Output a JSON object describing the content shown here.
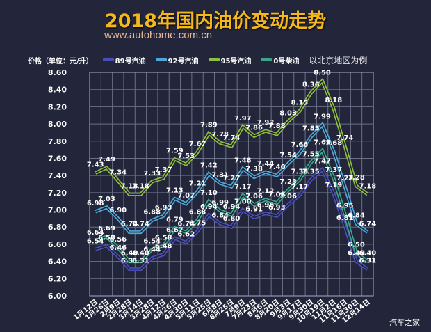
{
  "header": {
    "title": "2018年国内油价变动走势",
    "subtitle": "www.autohome.com.cn"
  },
  "legend": {
    "unit_label": "价格（单位：元/升）",
    "note": "以北京地区为例"
  },
  "watermark": "汽车之家",
  "chart_data": {
    "type": "line",
    "title": "2018年国内油价变动走势",
    "subtitle": "www.autohome.com.cn",
    "ylabel": "价格（单位：元/升）",
    "xlabel": "",
    "note": "以北京地区为例",
    "ylim": [
      6.0,
      8.6
    ],
    "yticks": [
      "6.00",
      "6.20",
      "6.40",
      "6.60",
      "6.80",
      "7.00",
      "7.20",
      "7.40",
      "7.60",
      "7.80",
      "8.00",
      "8.20",
      "8.40",
      "8.60"
    ],
    "grid": true,
    "legend_position": "top",
    "categories": [
      "1月12日",
      "1月26日",
      "2月9日",
      "2月28日",
      "3月14日",
      "3月28日",
      "4月12日",
      "4月26日",
      "4月30日",
      "5月11日",
      "5月25日",
      "6月8日",
      "6月25日",
      "7月9日",
      "7月23日",
      "8月6日",
      "8月20日",
      "9月3日",
      "9月17日",
      "9月30日",
      "10月19日",
      "11月2日",
      "11月16日",
      "11月30日",
      "12月14日"
    ],
    "series": [
      {
        "name": "89号汽油",
        "color": "#4a4fb8",
        "values": [
          6.54,
          6.58,
          6.46,
          6.31,
          6.31,
          6.44,
          6.48,
          6.67,
          6.62,
          6.75,
          6.94,
          6.84,
          6.8,
          7.0,
          6.91,
          6.96,
          6.93,
          7.06,
          7.17,
          7.35,
          7.47,
          7.19,
          6.81,
          6.4,
          6.31
        ]
      },
      {
        "name": "92号汽油",
        "color": "#4fa8d8",
        "values": [
          6.98,
          7.03,
          6.9,
          6.74,
          6.74,
          6.88,
          6.93,
          7.13,
          7.07,
          7.21,
          7.42,
          7.31,
          7.27,
          7.48,
          7.38,
          7.44,
          7.4,
          7.54,
          7.66,
          7.85,
          7.99,
          7.68,
          7.27,
          6.84,
          6.74
        ]
      },
      {
        "name": "95号汽油",
        "color": "#8fbf3f",
        "values": [
          7.43,
          7.49,
          7.34,
          7.18,
          7.18,
          7.33,
          7.37,
          7.59,
          7.53,
          7.67,
          7.89,
          7.78,
          7.74,
          7.97,
          7.86,
          7.92,
          7.88,
          8.03,
          8.15,
          8.36,
          8.5,
          8.18,
          7.74,
          7.28,
          7.18
        ]
      },
      {
        "name": "0号柴油",
        "color": "#3aa58a",
        "values": [
          6.64,
          6.69,
          6.56,
          6.4,
          6.4,
          6.54,
          6.58,
          6.79,
          6.74,
          6.88,
          7.1,
          6.99,
          6.94,
          7.17,
          7.06,
          7.12,
          7.08,
          7.23,
          7.35,
          7.55,
          7.69,
          7.37,
          6.95,
          6.5,
          6.4
        ]
      }
    ]
  }
}
